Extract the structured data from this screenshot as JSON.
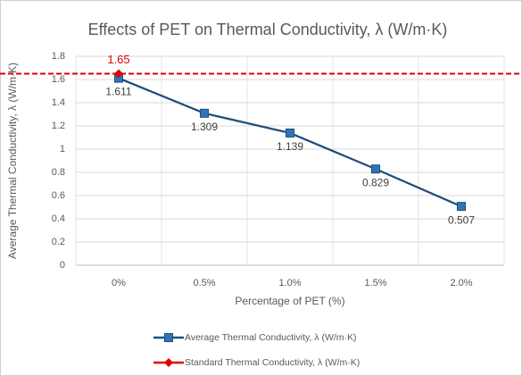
{
  "chart_data": {
    "type": "line",
    "title": "Effects of PET on Thermal Conductivity, λ (W/m·K)",
    "x_label": "Percentage of PET (%)",
    "y_label": "Average Thermal Conductivity, λ (W/m·K)",
    "categories": [
      "0%",
      "0.5%",
      "1.0%",
      "1.5%",
      "2.0%"
    ],
    "series": [
      {
        "name": "Average Thermal Conductivity, λ (W/m·K)",
        "color": "#2e75b6",
        "line_color": "#1f4e79",
        "marker": "square",
        "label_color": "#404040",
        "values": [
          1.611,
          1.309,
          1.139,
          0.829,
          0.507
        ]
      },
      {
        "name": "Standard Thermal Conductivity, λ (W/m·K)",
        "color": "#e00000",
        "line_color": "#e00000",
        "marker": "diamond",
        "label_color": "#e00000",
        "dashed_reference": true,
        "values": [
          1.65,
          null,
          null,
          null,
          null
        ]
      }
    ],
    "ylim": [
      0,
      1.8
    ],
    "yticks": [
      0,
      0.2,
      0.4,
      0.6,
      0.8,
      1,
      1.2,
      1.4,
      1.6,
      1.8
    ],
    "grid": true,
    "legend": "bottom"
  }
}
